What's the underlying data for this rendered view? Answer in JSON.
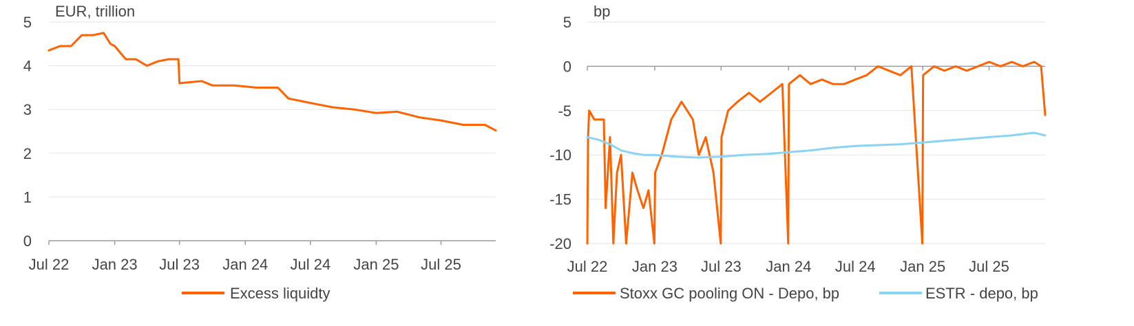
{
  "chart_data": [
    {
      "type": "line",
      "title": "",
      "ylabel": "EUR, trillion",
      "xlabel": "",
      "ylim": [
        0,
        5
      ],
      "yticks": [
        0,
        1,
        2,
        3,
        4,
        5
      ],
      "xlim": [
        "2022-07-01",
        "2025-12-01"
      ],
      "x_tick_labels": [
        "Jul 22",
        "Jan 23",
        "Jul 23",
        "Jan 24",
        "Jul 24",
        "Jan 25",
        "Jul 25"
      ],
      "x_tick_dates": [
        "2022-07-01",
        "2023-01-01",
        "2023-07-01",
        "2024-01-01",
        "2024-07-01",
        "2025-01-01",
        "2025-07-01"
      ],
      "grid": true,
      "legend_position": "bottom",
      "series": [
        {
          "name": "Excess liquidty",
          "color": "#FF6200",
          "x": [
            "2022-07-01",
            "2022-08-01",
            "2022-09-01",
            "2022-10-01",
            "2022-11-01",
            "2022-12-01",
            "2022-12-20",
            "2023-01-01",
            "2023-02-01",
            "2023-03-01",
            "2023-04-01",
            "2023-05-01",
            "2023-06-01",
            "2023-06-28",
            "2023-07-01",
            "2023-09-01",
            "2023-10-01",
            "2023-12-01",
            "2024-02-01",
            "2024-04-01",
            "2024-05-01",
            "2024-06-01",
            "2024-07-01",
            "2024-09-01",
            "2024-11-01",
            "2025-01-01",
            "2025-03-01",
            "2025-05-01",
            "2025-07-01",
            "2025-09-01",
            "2025-11-01",
            "2025-12-01"
          ],
          "values": [
            4.35,
            4.45,
            4.45,
            4.7,
            4.7,
            4.75,
            4.5,
            4.45,
            4.15,
            4.15,
            4.0,
            4.1,
            4.15,
            4.15,
            3.6,
            3.65,
            3.55,
            3.55,
            3.5,
            3.5,
            3.25,
            3.2,
            3.15,
            3.05,
            3.0,
            2.92,
            2.95,
            2.82,
            2.75,
            2.65,
            2.65,
            2.52
          ]
        }
      ]
    },
    {
      "type": "line",
      "title": "",
      "ylabel": "bp",
      "xlabel": "",
      "ylim": [
        -20,
        5
      ],
      "yticks": [
        -20,
        -15,
        -10,
        -5,
        0,
        5
      ],
      "xlim": [
        "2022-07-01",
        "2025-12-01"
      ],
      "x_tick_labels": [
        "Jul 22",
        "Jan 23",
        "Jul 23",
        "Jan 24",
        "Jul 24",
        "Jan 25",
        "Jul 25"
      ],
      "x_tick_dates": [
        "2022-07-01",
        "2023-01-01",
        "2023-07-01",
        "2024-01-01",
        "2024-07-01",
        "2025-01-01",
        "2025-07-01"
      ],
      "grid": true,
      "legend_position": "bottom",
      "series": [
        {
          "name": "Stoxx GC pooling ON - Depo, bp",
          "color": "#FF6200",
          "x": [
            "2022-07-01",
            "2022-07-03",
            "2022-07-06",
            "2022-07-20",
            "2022-08-15",
            "2022-08-20",
            "2022-09-01",
            "2022-09-10",
            "2022-09-20",
            "2022-10-01",
            "2022-10-15",
            "2022-11-01",
            "2022-11-15",
            "2022-12-01",
            "2022-12-15",
            "2022-12-31",
            "2023-01-02",
            "2023-01-20",
            "2023-02-15",
            "2023-03-15",
            "2023-04-15",
            "2023-05-01",
            "2023-05-20",
            "2023-06-10",
            "2023-06-30",
            "2023-07-02",
            "2023-07-20",
            "2023-08-15",
            "2023-09-15",
            "2023-10-15",
            "2023-11-15",
            "2023-12-15",
            "2023-12-31",
            "2024-01-02",
            "2024-02-01",
            "2024-03-01",
            "2024-04-01",
            "2024-05-01",
            "2024-06-01",
            "2024-07-01",
            "2024-08-01",
            "2024-09-01",
            "2024-10-01",
            "2024-11-01",
            "2024-12-01",
            "2024-12-31",
            "2025-01-02",
            "2025-02-01",
            "2025-03-01",
            "2025-04-01",
            "2025-05-01",
            "2025-06-01",
            "2025-07-01",
            "2025-08-01",
            "2025-09-01",
            "2025-10-01",
            "2025-11-01",
            "2025-11-20",
            "2025-12-01"
          ],
          "values": [
            -20,
            -8,
            -5,
            -6,
            -6,
            -16,
            -8,
            -20,
            -12,
            -10,
            -20,
            -12,
            -14,
            -16,
            -14,
            -20,
            -12,
            -10,
            -6,
            -4,
            -6,
            -10,
            -8,
            -12,
            -20,
            -8,
            -5,
            -4,
            -3,
            -4,
            -3,
            -2,
            -20,
            -2,
            -1,
            -2,
            -1.5,
            -2,
            -2,
            -1.5,
            -1,
            0,
            -0.5,
            -1,
            0,
            -20,
            -1,
            0,
            -0.5,
            0,
            -0.5,
            0,
            0.5,
            0,
            0.5,
            0,
            0.5,
            0,
            -5.5
          ]
        },
        {
          "name": "ESTR - depo, bp",
          "color": "#89D3F5",
          "x": [
            "2022-07-01",
            "2022-08-01",
            "2022-09-01",
            "2022-10-01",
            "2022-11-01",
            "2022-12-01",
            "2023-01-01",
            "2023-03-01",
            "2023-05-01",
            "2023-07-01",
            "2023-09-01",
            "2023-11-01",
            "2024-01-01",
            "2024-03-01",
            "2024-05-01",
            "2024-07-01",
            "2024-09-01",
            "2024-11-01",
            "2025-01-01",
            "2025-03-01",
            "2025-05-01",
            "2025-07-01",
            "2025-09-01",
            "2025-11-01",
            "2025-12-01"
          ],
          "values": [
            -8,
            -8.3,
            -8.8,
            -9.5,
            -9.8,
            -10,
            -10,
            -10.2,
            -10.3,
            -10.2,
            -10,
            -9.9,
            -9.7,
            -9.5,
            -9.2,
            -9,
            -8.9,
            -8.8,
            -8.6,
            -8.4,
            -8.2,
            -8,
            -7.8,
            -7.5,
            -7.8
          ]
        }
      ]
    }
  ]
}
